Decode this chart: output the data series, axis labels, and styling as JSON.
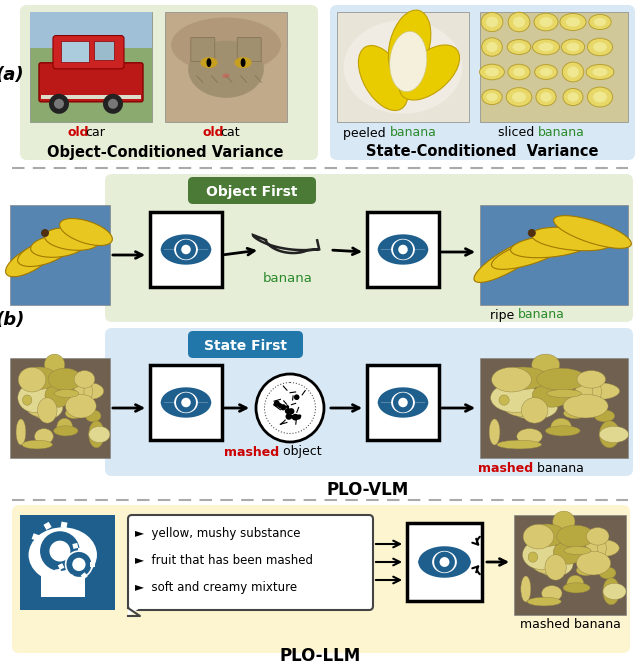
{
  "fig_width": 6.4,
  "fig_height": 6.64,
  "bg_color": "#ffffff",
  "section_a_bg_left": "#e6eed8",
  "section_a_bg_right": "#d8e8f5",
  "section_b_top_bg": "#e6eed8",
  "section_b_bot_bg": "#d8e8f5",
  "section_c_bg": "#fdf5d0",
  "green_color": "#2a8a2a",
  "red_color": "#cc0000",
  "blue_icon": "#1e5f8e",
  "dark_blue_btn": "#2277aa",
  "green_btn": "#4a7a35",
  "arrow_color": "#111111",
  "label_a": "(a)",
  "label_b": "(b)",
  "title_obj_variance": "Object-Conditioned Variance",
  "title_state_variance": "State-Conditioned  Variance",
  "title_plo_vlm": "PLO-VLM",
  "title_plo_llm": "PLO-LLM",
  "object_first_label": "Object First",
  "state_first_label": "State First",
  "llm_bullets": [
    "►  yellow, mushy substance",
    "►  fruit that has been mashed",
    "►  soft and creamy mixture"
  ],
  "label_mashed3_black": "mashed banana"
}
